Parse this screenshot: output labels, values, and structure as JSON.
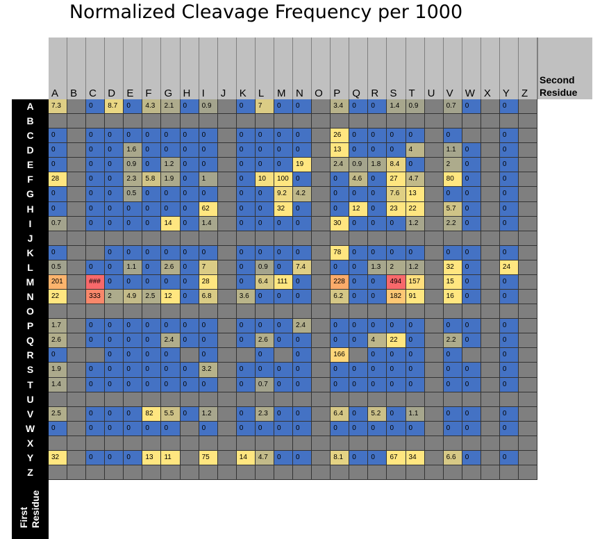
{
  "chart_data": {
    "type": "heatmap",
    "title": "Normalized Cleavage Frequency per 1000",
    "xlabel": "Second Residue",
    "ylabel": "First Residue",
    "columns": [
      "A",
      "B",
      "C",
      "D",
      "E",
      "F",
      "G",
      "H",
      "I",
      "J",
      "K",
      "L",
      "M",
      "N",
      "O",
      "P",
      "Q",
      "R",
      "S",
      "T",
      "U",
      "V",
      "W",
      "X",
      "Y",
      "Z"
    ],
    "rows": [
      "A",
      "B",
      "C",
      "D",
      "E",
      "F",
      "G",
      "H",
      "I",
      "J",
      "K",
      "L",
      "M",
      "N",
      "O",
      "P",
      "Q",
      "R",
      "S",
      "T",
      "U",
      "V",
      "W",
      "X",
      "Y",
      "Z"
    ],
    "values": [
      [
        "7.3",
        "",
        "0",
        "8.7",
        "0",
        "4.3",
        "2.1",
        "0",
        "0.9",
        "",
        "0",
        "7",
        "0",
        "0",
        "",
        "3.4",
        "0",
        "0",
        "1.4",
        "0.9",
        "",
        "0.7",
        "0",
        "",
        "0",
        ""
      ],
      [
        "",
        "",
        "",
        "",
        "",
        "",
        "",
        "",
        "",
        "",
        "",
        "",
        "",
        "",
        "",
        "",
        "",
        "",
        "",
        "",
        "",
        "",
        "",
        "",
        "",
        ""
      ],
      [
        "0",
        "",
        "0",
        "0",
        "0",
        "0",
        "0",
        "0",
        "0",
        "",
        "0",
        "0",
        "0",
        "0",
        "",
        "26",
        "0",
        "0",
        "0",
        "0",
        "",
        "0",
        "",
        "",
        "0",
        ""
      ],
      [
        "0",
        "",
        "0",
        "0",
        "1.6",
        "0",
        "0",
        "0",
        "0",
        "",
        "0",
        "0",
        "0",
        "0",
        "",
        "13",
        "0",
        "0",
        "0",
        "4",
        "",
        "1.1",
        "0",
        "",
        "0",
        ""
      ],
      [
        "0",
        "",
        "0",
        "0",
        "0.9",
        "0",
        "1.2",
        "0",
        "0",
        "",
        "0",
        "0",
        "0",
        "19",
        "",
        "2.4",
        "0.9",
        "1.8",
        "8.4",
        "0",
        "",
        "2",
        "0",
        "",
        "0",
        ""
      ],
      [
        "28",
        "",
        "0",
        "0",
        "2.3",
        "5.8",
        "1.9",
        "0",
        "1",
        "",
        "0",
        "10",
        "100",
        "0",
        "",
        "0",
        "4.6",
        "0",
        "27",
        "4.7",
        "",
        "80",
        "0",
        "",
        "0",
        ""
      ],
      [
        "0",
        "",
        "0",
        "0",
        "0.5",
        "0",
        "0",
        "0",
        "0",
        "",
        "0",
        "0",
        "9.2",
        "4.2",
        "",
        "0",
        "0",
        "0",
        "7.6",
        "13",
        "",
        "0",
        "0",
        "",
        "0",
        ""
      ],
      [
        "0",
        "",
        "0",
        "0",
        "0",
        "0",
        "0",
        "0",
        "62",
        "",
        "0",
        "0",
        "32",
        "0",
        "",
        "0",
        "12",
        "0",
        "23",
        "22",
        "",
        "5.7",
        "0",
        "",
        "0",
        ""
      ],
      [
        "0.7",
        "",
        "0",
        "0",
        "0",
        "0",
        "14",
        "0",
        "1.4",
        "",
        "0",
        "0",
        "0",
        "0",
        "",
        "30",
        "0",
        "0",
        "0",
        "1.2",
        "",
        "2.2",
        "0",
        "",
        "0",
        ""
      ],
      [
        "",
        "",
        "",
        "",
        "",
        "",
        "",
        "",
        "",
        "",
        "",
        "",
        "",
        "",
        "",
        "",
        "",
        "",
        "",
        "",
        "",
        "",
        "",
        "",
        "",
        ""
      ],
      [
        "0",
        "",
        "",
        "0",
        "0",
        "0",
        "0",
        "0",
        "0",
        "",
        "0",
        "0",
        "0",
        "0",
        "",
        "78",
        "0",
        "0",
        "0",
        "0",
        "",
        "0",
        "0",
        "",
        "0",
        ""
      ],
      [
        "0.5",
        "",
        "0",
        "0",
        "1.1",
        "0",
        "2.6",
        "0",
        "7",
        "",
        "0",
        "0.9",
        "0",
        "7.4",
        "",
        "0",
        "0",
        "1.3",
        "2",
        "1.2",
        "",
        "32",
        "0",
        "",
        "24",
        ""
      ],
      [
        "201",
        "",
        "###",
        "0",
        "0",
        "0",
        "0",
        "0",
        "28",
        "",
        "0",
        "6.4",
        "111",
        "0",
        "",
        "228",
        "0",
        "0",
        "494",
        "157",
        "",
        "15",
        "0",
        "",
        "0",
        ""
      ],
      [
        "22",
        "",
        "333",
        "2",
        "4.9",
        "2.5",
        "12",
        "0",
        "6.8",
        "",
        "3.6",
        "0",
        "0",
        "0",
        "",
        "6.2",
        "0",
        "0",
        "182",
        "91",
        "",
        "16",
        "0",
        "",
        "0",
        ""
      ],
      [
        "",
        "",
        "",
        "",
        "",
        "",
        "",
        "",
        "",
        "",
        "",
        "",
        "",
        "",
        "",
        "",
        "",
        "",
        "",
        "",
        "",
        "",
        "",
        "",
        "",
        ""
      ],
      [
        "1.7",
        "",
        "0",
        "0",
        "0",
        "0",
        "0",
        "0",
        "0",
        "",
        "0",
        "0",
        "0",
        "2.4",
        "",
        "0",
        "0",
        "0",
        "0",
        "0",
        "",
        "0",
        "0",
        "",
        "0",
        ""
      ],
      [
        "2.6",
        "",
        "0",
        "0",
        "0",
        "0",
        "2.4",
        "0",
        "0",
        "",
        "0",
        "2.6",
        "0",
        "0",
        "",
        "0",
        "0",
        "4",
        "22",
        "0",
        "",
        "2.2",
        "0",
        "",
        "0",
        ""
      ],
      [
        "0",
        "",
        "",
        "0",
        "0",
        "0",
        "0",
        "",
        "0",
        "",
        "",
        "0",
        "",
        "0",
        "",
        "166",
        "",
        "0",
        "0",
        "0",
        "",
        "0",
        "",
        "",
        "0",
        ""
      ],
      [
        "1.9",
        "",
        "0",
        "0",
        "0",
        "0",
        "0",
        "0",
        "3.2",
        "",
        "0",
        "0",
        "0",
        "0",
        "",
        "0",
        "0",
        "0",
        "0",
        "0",
        "",
        "0",
        "0",
        "",
        "0",
        ""
      ],
      [
        "1.4",
        "",
        "0",
        "0",
        "0",
        "0",
        "0",
        "0",
        "0",
        "",
        "0",
        "0.7",
        "0",
        "0",
        "",
        "0",
        "0",
        "0",
        "0",
        "0",
        "",
        "0",
        "0",
        "",
        "0",
        ""
      ],
      [
        "",
        "",
        "",
        "",
        "",
        "",
        "",
        "",
        "",
        "",
        "",
        "",
        "",
        "",
        "",
        "",
        "",
        "",
        "",
        "",
        "",
        "",
        "",
        "",
        "",
        ""
      ],
      [
        "2.5",
        "",
        "0",
        "0",
        "0",
        "82",
        "5.5",
        "0",
        "1.2",
        "",
        "0",
        "2.3",
        "0",
        "0",
        "",
        "6.4",
        "0",
        "5.2",
        "0",
        "1.1",
        "",
        "0",
        "0",
        "",
        "0",
        ""
      ],
      [
        "0",
        "",
        "0",
        "0",
        "0",
        "0",
        "0",
        "",
        "0",
        "",
        "0",
        "0",
        "0",
        "0",
        "",
        "0",
        "0",
        "0",
        "0",
        "0",
        "",
        "0",
        "0",
        "",
        "0",
        ""
      ],
      [
        "",
        "",
        "",
        "",
        "",
        "",
        "",
        "",
        "",
        "",
        "",
        "",
        "",
        "",
        "",
        "",
        "",
        "",
        "",
        "",
        "",
        "",
        "",
        "",
        "",
        ""
      ],
      [
        "32",
        "",
        "0",
        "0",
        "0",
        "13",
        "11",
        "",
        "75",
        "",
        "14",
        "4.7",
        "0",
        "0",
        "",
        "8.1",
        "0",
        "0",
        "67",
        "34",
        "",
        "6.6",
        "0",
        "",
        "0",
        ""
      ],
      [
        "",
        "",
        "",
        "",
        "",
        "",
        "",
        "",
        "",
        "",
        "",
        "",
        "",
        "",
        "",
        "",
        "",
        "",
        "",
        "",
        "",
        "",
        "",
        "",
        "",
        ""
      ]
    ],
    "color_scale": {
      "zero": "#4472c4",
      "low": "#a5a58d",
      "mid": "#ffe680",
      "high": "#fbab6a",
      "max": "#f8696b",
      "empty": "#7f7f7f"
    }
  }
}
